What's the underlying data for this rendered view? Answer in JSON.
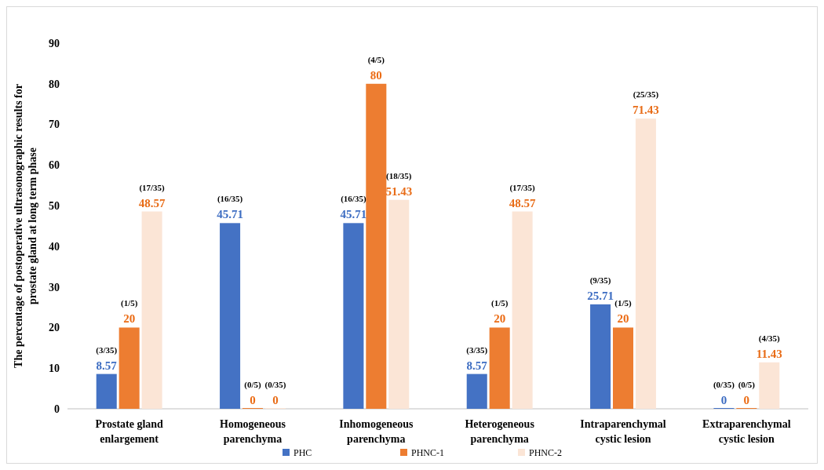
{
  "chart_data": {
    "type": "bar",
    "ylabel": "The percentage of postoperative ultrasonographic results for\nprostate gland at long term phase",
    "categories": [
      "Prostate gland enlargement",
      "Homogeneous parenchyma",
      "Inhomogeneous parenchyma",
      "Heterogeneous parenchyma",
      "Intraparenchymal cystic lesion",
      "Extraparenchymal cystic lesion"
    ],
    "series": [
      {
        "name": "PHC",
        "color": "#4472c4",
        "values": [
          8.57,
          45.71,
          45.71,
          8.57,
          25.71,
          0
        ]
      },
      {
        "name": "PHNC-1",
        "color": "#ed7d31",
        "values": [
          20,
          0,
          80,
          20,
          20,
          0
        ]
      },
      {
        "name": "PHNC-2",
        "color": "#fbe5d6",
        "values": [
          48.57,
          0,
          51.43,
          48.57,
          71.43,
          11.43
        ]
      }
    ],
    "ylim": [
      0,
      90
    ],
    "yticks": [
      0,
      10,
      20,
      30,
      40,
      50,
      60,
      70,
      80,
      90
    ],
    "data_labels": true,
    "legend": "bottom",
    "grid": false,
    "annotations": [
      "(3/35)",
      "(1/5)",
      "(17/35)",
      "(16/35)",
      "(0/5)",
      "(0/35)",
      "(16/35)",
      "(4/5)",
      "(18/35)",
      "(3/35)",
      "(1/5)",
      "(17/35)",
      "(9/35)",
      "(1/5)",
      "(25/35)",
      "(0/35)",
      "(0/5)",
      "(4/35)"
    ]
  }
}
